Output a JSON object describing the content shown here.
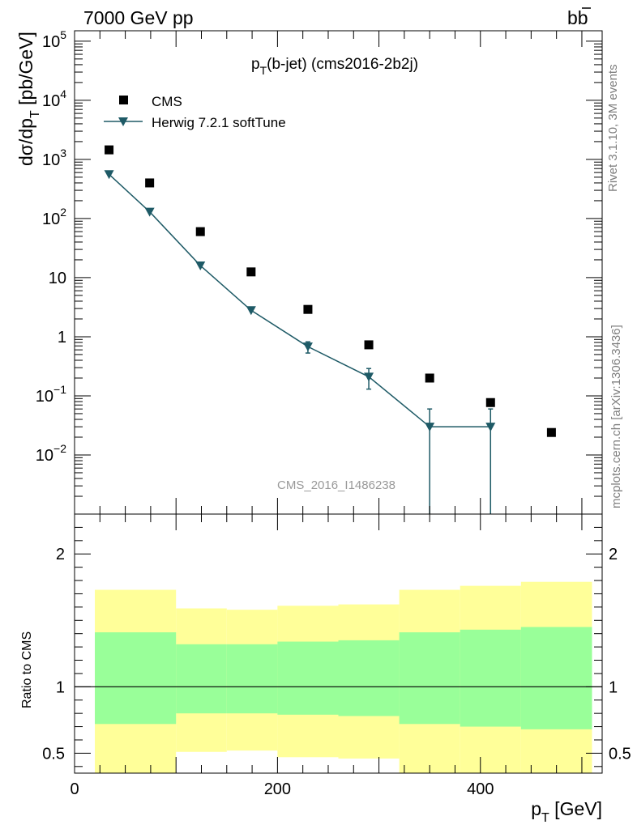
{
  "header": {
    "left": "7000 GeV pp",
    "right_b": "b",
    "right_bbar": "b"
  },
  "side_text": {
    "rivet": "Rivet 3.1.10,  3M events",
    "mcplots": "mcplots.cern.ch [arXiv:1306.3436]"
  },
  "watermark": "CMS_2016_I1486238",
  "chart_data": [
    {
      "type": "scatter",
      "title_main": "p",
      "title_sub": "T",
      "title_rest": "(b-jet) (cms2016-2b2j)",
      "ylabel": {
        "prefix": "dσ/dp",
        "sub": "T",
        "suffix": " [pb/GeV]"
      },
      "y_scale": "log",
      "ylim": [
        0.001,
        150000
      ],
      "xlim": [
        0,
        520
      ],
      "y_ticks": [
        {
          "value": 100000,
          "base": "10",
          "exp": "5"
        },
        {
          "value": 10000,
          "base": "10",
          "exp": "4"
        },
        {
          "value": 1000,
          "base": "10",
          "exp": "3"
        },
        {
          "value": 100,
          "base": "10",
          "exp": "2"
        },
        {
          "value": 10,
          "base": "10",
          "exp": ""
        },
        {
          "value": 1,
          "base": "1",
          "exp": ""
        },
        {
          "value": 0.1,
          "base": "10",
          "exp": "−1"
        },
        {
          "value": 0.01,
          "base": "10",
          "exp": "−2"
        }
      ],
      "legend_placement": "top-left",
      "series": [
        {
          "name": "CMS",
          "marker": "square",
          "color": "#000000",
          "x": [
            34,
            74,
            124,
            174,
            230,
            290,
            350,
            410,
            470
          ],
          "y": [
            1450,
            400,
            60,
            12.5,
            2.9,
            0.73,
            0.2,
            0.077,
            0.024
          ]
        },
        {
          "name": "Herwig 7.2.1 softTune",
          "marker": "triangle-down",
          "color": "#1e5a66",
          "x": [
            34,
            74,
            124,
            174,
            230,
            290,
            350,
            410
          ],
          "y": [
            560,
            130,
            16,
            2.8,
            0.68,
            0.21,
            0.03,
            0.03
          ],
          "yerr_low": [
            0,
            0,
            0,
            0,
            0.53,
            0.13,
            0.001,
            0.001
          ],
          "yerr_high": [
            0,
            0,
            0,
            0,
            0.82,
            0.29,
            0.06,
            0.06
          ]
        }
      ]
    },
    {
      "type": "area",
      "ylabel": "Ratio to CMS",
      "xlabel": {
        "main": "p",
        "sub": "T",
        "suffix": " [GeV]"
      },
      "xlim": [
        0,
        520
      ],
      "ylim": [
        0.35,
        2.3
      ],
      "x_ticks": [
        0,
        200,
        400
      ],
      "y_ticks": [
        0.5,
        1,
        2
      ],
      "reference_line": 1,
      "bins": [
        20,
        100,
        150,
        200,
        260,
        320,
        380,
        440,
        510
      ],
      "bands": [
        {
          "name": "stat",
          "color": "#99ff99",
          "lower": [
            0.72,
            0.8,
            0.8,
            0.79,
            0.78,
            0.72,
            0.7,
            0.68
          ],
          "upper": [
            1.41,
            1.32,
            1.32,
            1.34,
            1.35,
            1.41,
            1.43,
            1.45
          ]
        },
        {
          "name": "syst",
          "color": "#ffff99",
          "lower": [
            0.35,
            0.51,
            0.52,
            0.47,
            0.46,
            0.35,
            0.35,
            0.35
          ],
          "upper": [
            1.73,
            1.59,
            1.58,
            1.61,
            1.62,
            1.73,
            1.76,
            1.79
          ]
        }
      ]
    }
  ]
}
